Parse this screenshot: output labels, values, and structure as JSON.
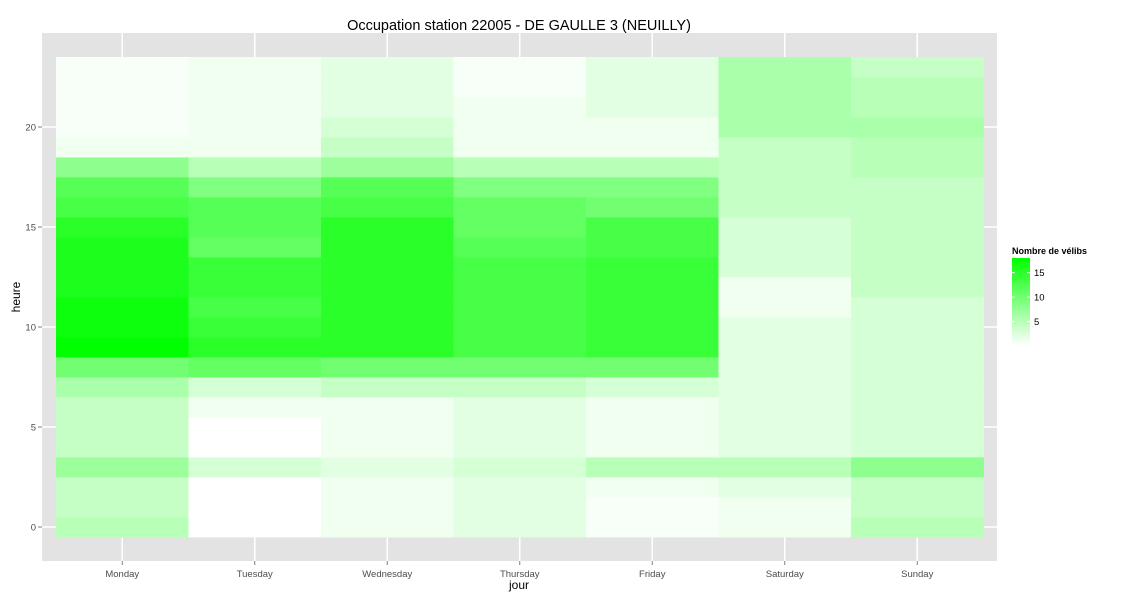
{
  "chart_data": {
    "type": "heatmap",
    "title": "Occupation station 22005 - DE GAULLE 3 (NEUILLY)",
    "xlabel": "jour",
    "ylabel": "heure",
    "x": [
      "Monday",
      "Tuesday",
      "Wednesday",
      "Thursday",
      "Friday",
      "Saturday",
      "Sunday"
    ],
    "y": [
      0,
      1,
      2,
      3,
      4,
      5,
      6,
      7,
      8,
      9,
      10,
      11,
      12,
      13,
      14,
      15,
      16,
      17,
      18,
      19,
      20,
      21,
      22,
      23
    ],
    "ylim": [
      -0.5,
      23.5
    ],
    "y_ticks": [
      0,
      5,
      10,
      15,
      20
    ],
    "values": [
      [
        5,
        0,
        1,
        2,
        0.5,
        1,
        5
      ],
      [
        4,
        0,
        1,
        2,
        0.5,
        1,
        4
      ],
      [
        4,
        0,
        1,
        2,
        1,
        2,
        4
      ],
      [
        7,
        3,
        2,
        3,
        5,
        5,
        8
      ],
      [
        4,
        0,
        1,
        2,
        1,
        2,
        3
      ],
      [
        4,
        0,
        1,
        2,
        1,
        2,
        3
      ],
      [
        4,
        1,
        1,
        2,
        1,
        2,
        3
      ],
      [
        6,
        3,
        4,
        4,
        3,
        2,
        3
      ],
      [
        10,
        11,
        10,
        10,
        10,
        2,
        3
      ],
      [
        18,
        15,
        15,
        13,
        14,
        2,
        3
      ],
      [
        17,
        14,
        15,
        13,
        14,
        2,
        3
      ],
      [
        17,
        13,
        15,
        13,
        14,
        1,
        3
      ],
      [
        16,
        14,
        15,
        13,
        14,
        1,
        4
      ],
      [
        16,
        14,
        15,
        13,
        14,
        3,
        4
      ],
      [
        16,
        11,
        15,
        12,
        13,
        3,
        4
      ],
      [
        15,
        12,
        15,
        11,
        13,
        3,
        4
      ],
      [
        13,
        12,
        13,
        11,
        10,
        4,
        4
      ],
      [
        12,
        9,
        12,
        9,
        9,
        4,
        4
      ],
      [
        8,
        5,
        7,
        5,
        5,
        4,
        5
      ],
      [
        1,
        1,
        4,
        1,
        1,
        4,
        5
      ],
      [
        0.5,
        1,
        3,
        1,
        1,
        6,
        6
      ],
      [
        0.5,
        1,
        2,
        1,
        2,
        6,
        5
      ],
      [
        0.5,
        1,
        2,
        0.5,
        2,
        6,
        5
      ],
      [
        0.5,
        1,
        2,
        0.5,
        2,
        6,
        4
      ]
    ],
    "legend": {
      "title": "Nombre de vélibs",
      "ticks": [
        5,
        10,
        15
      ],
      "range": [
        0,
        18
      ],
      "low_color": "#ffffff",
      "high_color": "#00ff00",
      "placement": "right"
    },
    "grid": true,
    "panel_color": "#e3e3e3",
    "grid_color": "#ffffff"
  }
}
